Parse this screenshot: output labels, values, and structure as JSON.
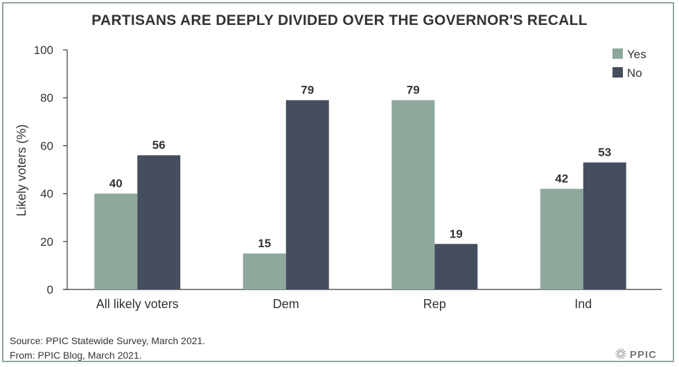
{
  "chart_data": {
    "type": "bar",
    "title": "PARTISANS ARE DEEPLY DIVIDED OVER THE GOVERNOR'S RECALL",
    "xlabel": "",
    "ylabel": "Likely voters (%)",
    "ylim": [
      0,
      100
    ],
    "yticks": [
      0,
      20,
      40,
      60,
      80,
      100
    ],
    "categories": [
      "All likely voters",
      "Dem",
      "Rep",
      "Ind"
    ],
    "series": [
      {
        "name": "Yes",
        "values": [
          40,
          15,
          79,
          42
        ],
        "color": "#8fa89c"
      },
      {
        "name": "No",
        "values": [
          56,
          79,
          19,
          53
        ],
        "color": "#454e5f"
      }
    ],
    "legend": "top-right",
    "grid": false
  },
  "footer": {
    "source": "Source: PPIC Statewide Survey, March 2021.",
    "from": "From: PPIC Blog, March 2021."
  },
  "logo": {
    "text": "PPIC",
    "icon": "starburst-icon"
  }
}
